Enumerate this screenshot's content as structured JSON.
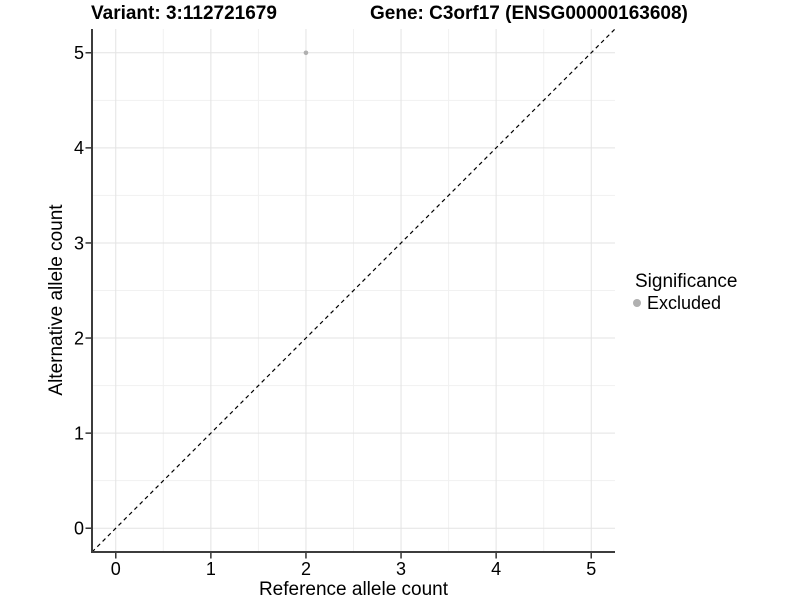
{
  "header": {
    "variant_title": "Variant: 3:112721679",
    "gene_title": "Gene: C3orf17 (ENSG00000163608)"
  },
  "legend": {
    "title": "Significance",
    "items": [
      {
        "label": "Excluded",
        "color": "#b0b0b0"
      }
    ]
  },
  "chart_data": {
    "type": "scatter",
    "xlabel": "Reference allele count",
    "ylabel": "Alternative allele count",
    "x_ticks": [
      0,
      1,
      2,
      3,
      4,
      5
    ],
    "y_ticks": [
      0,
      1,
      2,
      3,
      4,
      5
    ],
    "xlim": [
      -0.25,
      5.25
    ],
    "ylim": [
      -0.25,
      5.25
    ],
    "grid": "major+minor",
    "legend_position": "right",
    "identity_line": {
      "style": "dashed",
      "from": [
        -0.25,
        -0.25
      ],
      "to": [
        5.25,
        5.25
      ],
      "color": "#000000"
    },
    "series": [
      {
        "name": "Excluded",
        "color": "#b0b0b0",
        "points": [
          {
            "x": 2,
            "y": 5
          }
        ]
      }
    ],
    "colors": {
      "major_grid": "#e3e3e3",
      "minor_grid": "#f1f1f1",
      "axis_line": "#3c3c3c",
      "tick_mark": "#333333"
    }
  }
}
